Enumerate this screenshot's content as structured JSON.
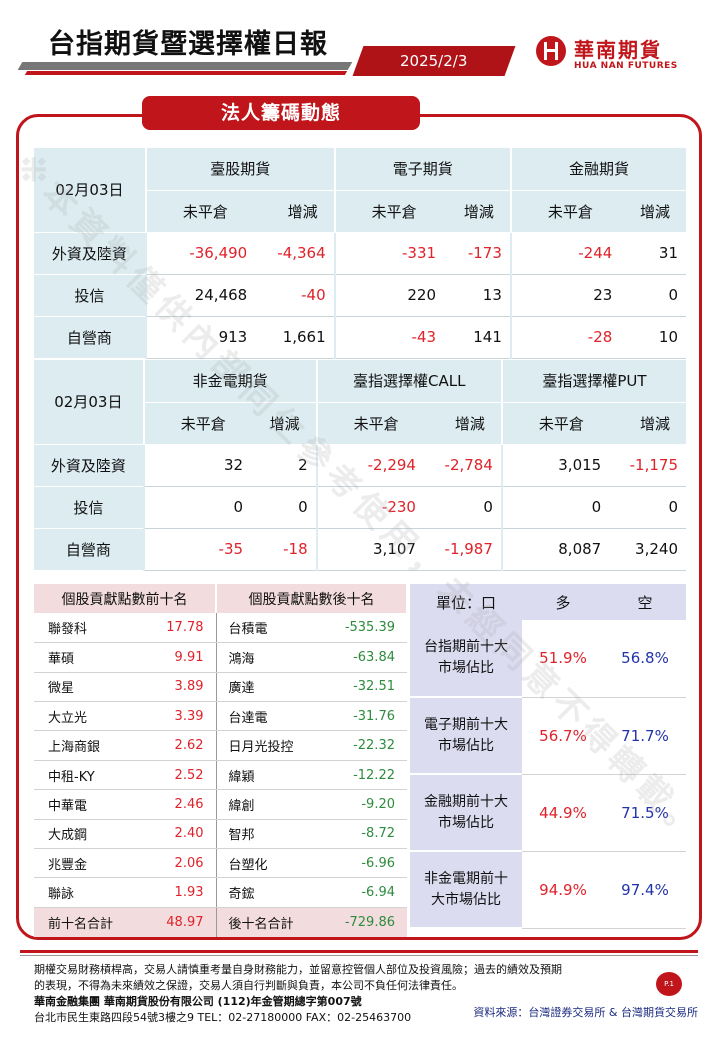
{
  "header": {
    "title": "台指期貨暨選擇權日報",
    "date": "2025/2/3",
    "logo_cn": "華南期貨",
    "logo_en": "HUA NAN FUTURES"
  },
  "section_title": "法人籌碼動態",
  "sub_headers": {
    "open_interest": "未平倉",
    "change": "增減"
  },
  "table1": {
    "date": "02月03日",
    "groups": [
      "臺股期貨",
      "電子期貨",
      "金融期貨"
    ],
    "rows": [
      {
        "label": "外資及陸資",
        "values": [
          "-36,490",
          "-4,364",
          "-331",
          "-173",
          "-244",
          "31"
        ]
      },
      {
        "label": "投信",
        "values": [
          "24,468",
          "-40",
          "220",
          "13",
          "23",
          "0"
        ]
      },
      {
        "label": "自營商",
        "values": [
          "913",
          "1,661",
          "-43",
          "141",
          "-28",
          "10"
        ]
      }
    ]
  },
  "table2": {
    "date": "02月03日",
    "groups": [
      "非金電期貨",
      "臺指選擇權CALL",
      "臺指選擇權PUT"
    ],
    "rows": [
      {
        "label": "外資及陸資",
        "values": [
          "32",
          "2",
          "-2,294",
          "-2,784",
          "3,015",
          "-1,175"
        ]
      },
      {
        "label": "投信",
        "values": [
          "0",
          "0",
          "-230",
          "0",
          "0",
          "0"
        ]
      },
      {
        "label": "自營商",
        "values": [
          "-35",
          "-18",
          "3,107",
          "-1,987",
          "8,087",
          "3,240"
        ]
      }
    ]
  },
  "stocks": {
    "top_header": "個股貢獻點數前十名",
    "bottom_header": "個股貢獻點數後十名",
    "rows": [
      {
        "up_name": "聯發科",
        "up_val": "17.78",
        "dn_name": "台積電",
        "dn_val": "-535.39"
      },
      {
        "up_name": "華碩",
        "up_val": "9.91",
        "dn_name": "鴻海",
        "dn_val": "-63.84"
      },
      {
        "up_name": "微星",
        "up_val": "3.89",
        "dn_name": "廣達",
        "dn_val": "-32.51"
      },
      {
        "up_name": "大立光",
        "up_val": "3.39",
        "dn_name": "台達電",
        "dn_val": "-31.76"
      },
      {
        "up_name": "上海商銀",
        "up_val": "2.62",
        "dn_name": "日月光投控",
        "dn_val": "-22.32"
      },
      {
        "up_name": "中租-KY",
        "up_val": "2.52",
        "dn_name": "緯穎",
        "dn_val": "-12.22"
      },
      {
        "up_name": "中華電",
        "up_val": "2.46",
        "dn_name": "緯創",
        "dn_val": "-9.20"
      },
      {
        "up_name": "大成鋼",
        "up_val": "2.40",
        "dn_name": "智邦",
        "dn_val": "-8.72"
      },
      {
        "up_name": "兆豐金",
        "up_val": "2.06",
        "dn_name": "台塑化",
        "dn_val": "-6.96"
      },
      {
        "up_name": "聯詠",
        "up_val": "1.93",
        "dn_name": "奇鋐",
        "dn_val": "-6.94"
      }
    ],
    "sum": {
      "up_label": "前十名合計",
      "up_val": "48.97",
      "dn_label": "後十名合計",
      "dn_val": "-729.86"
    }
  },
  "share": {
    "unit": "單位：口",
    "long": "多",
    "short": "空",
    "rows": [
      {
        "line1": "台指期前十大",
        "line2": "市場佔比",
        "long": "51.9%",
        "short": "56.8%"
      },
      {
        "line1": "電子期前十大",
        "line2": "市場佔比",
        "long": "56.7%",
        "short": "71.7%"
      },
      {
        "line1": "金融期前十大",
        "line2": "市場佔比",
        "long": "44.9%",
        "short": "71.5%"
      },
      {
        "line1": "非金電期前十",
        "line2": "大市場佔比",
        "long": "94.9%",
        "short": "97.4%"
      }
    ]
  },
  "watermark": "※本資料僅供內部同仁參考使用，未經同意不得轉載。",
  "footer": {
    "disclaimer1": "期權交易財務槓桿高，交易人請慎重考量自身財務能力，並留意控管個人部位及投資風險；過去的績效及預期",
    "disclaimer2": "的表現，不得為未來績效之保證，交易人須自行判斷與負責，本公司不負任何法律責任。",
    "company": "華南金融集團 華南期貨股份有限公司 (112)年金管期總字第007號",
    "address": "台北市民生東路四段54號3樓之9  TEL：02-27180000  FAX：02-25463700",
    "page": "P.1",
    "source": "資料來源：台灣證券交易所 & 台灣期貨交易所"
  }
}
